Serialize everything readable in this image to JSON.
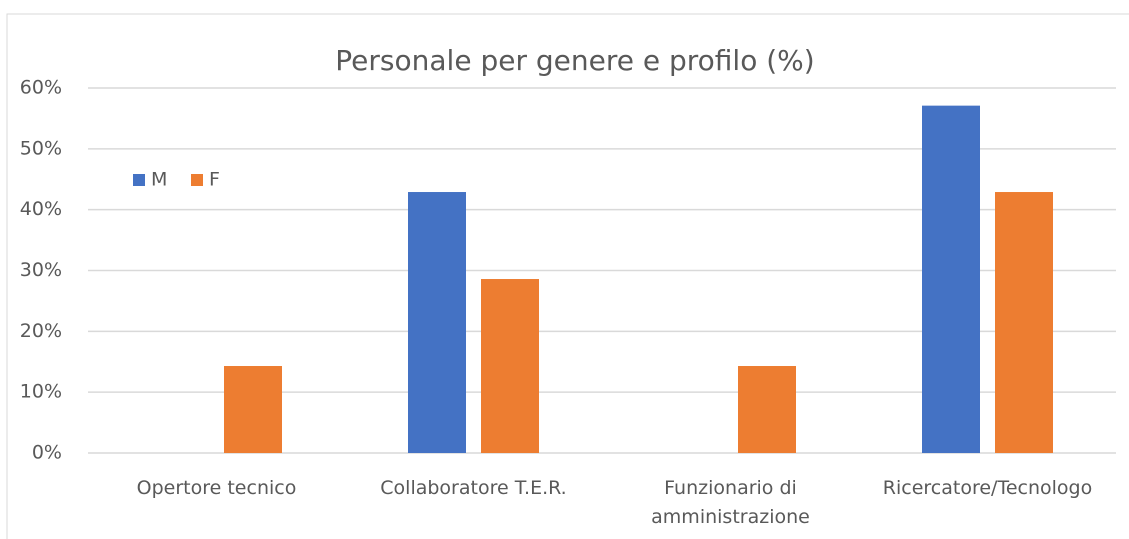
{
  "chart_data": {
    "type": "bar",
    "title": "Personale per genere e profilo (%)",
    "categories": [
      "Opertore tecnico",
      "Collaboratore T.E.R.",
      "Funzionario di amministrazione",
      "Ricercatore/Tecnologo"
    ],
    "series": [
      {
        "name": "M",
        "color": "#4472c4",
        "values": [
          0,
          42.9,
          0,
          57.1
        ]
      },
      {
        "name": "F",
        "color": "#ed7d31",
        "values": [
          14.3,
          28.6,
          14.3,
          42.9
        ]
      }
    ],
    "ylim": [
      0,
      60
    ],
    "yticks": [
      {
        "value": 0,
        "label": "0%"
      },
      {
        "value": 10,
        "label": "10%"
      },
      {
        "value": 20,
        "label": "20%"
      },
      {
        "value": 30,
        "label": "30%"
      },
      {
        "value": 40,
        "label": "40%"
      },
      {
        "value": 50,
        "label": "50%"
      },
      {
        "value": 60,
        "label": "60%"
      }
    ],
    "grid": true,
    "legend": "upper left"
  }
}
